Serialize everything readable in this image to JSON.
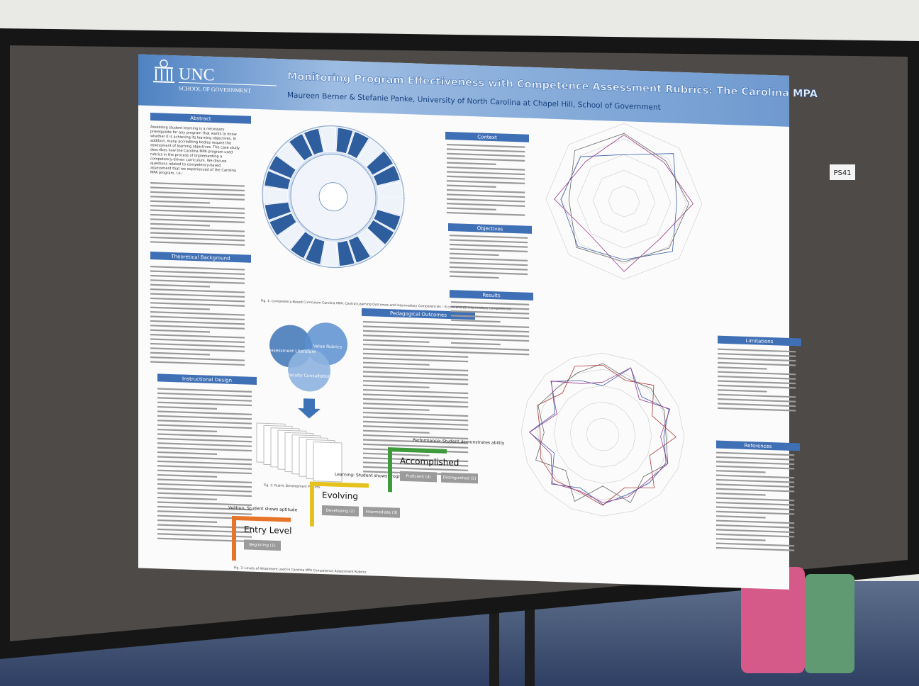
{
  "sign": "PS41",
  "header": {
    "org": "UNC",
    "school": "SCHOOL OF GOVERNMENT",
    "title": "Monitoring Program Effectiveness with Competence Assessment Rubrics: The Carolina MPA",
    "authors": "Maureen Berner & Stefanie Panke, University of North Carolina at Chapel Hill, School of Government"
  },
  "sections": [
    "Abstract",
    "Theoretical Background",
    "Instructional Design",
    "Pedagogical Outcomes",
    "Context",
    "Objectives",
    "Results",
    "Limitations",
    "References"
  ],
  "abstract_lines": [
    "Assessing student learning is a necessary",
    "prerequisite for any program that wants to know",
    "whether it is achieving its learning objectives. In",
    "addition, many accrediting bodies require the",
    "assessment of learning objectives. The case study",
    "describes how the Carolina MPA program used",
    "rubrics in the process of implementing a",
    "competency-driven curriculum. We discuss",
    "questions related to competency-based",
    "assessment that we experienced of the Carolina",
    "MPA program, i.e.:"
  ],
  "rubric_inputs": [
    "Assessment Literature",
    "Value Rubrics",
    "Faculty Consultation"
  ],
  "captions": [
    "Fig. 1: Competency-Based Curriculum Carolina MPA: Central Learning Outcomes and Intermediary Competencies – 8 core and 25 intermediary competencies.",
    "Fig. 2: Rubric Development Process",
    "Fig. 3: Levels of Attainment used in Carolina MPA Competence Assessment Rubrics"
  ],
  "levels": [
    {
      "name": "Entry Level",
      "note": "Volition: Student shows aptitude",
      "grades": [
        "Beginning (1)"
      ],
      "color": "#e8742a"
    },
    {
      "name": "Evolving",
      "note": "Learning: Student shows progress",
      "grades": [
        "Developing (2)",
        "Intermediate (3)"
      ],
      "color": "#e6c21e"
    },
    {
      "name": "Accomplished",
      "note": "Performance: Student demonstrates ability",
      "grades": [
        "Proficient (4)",
        "Distinguished (5)"
      ],
      "color": "#3f9a3c"
    }
  ]
}
